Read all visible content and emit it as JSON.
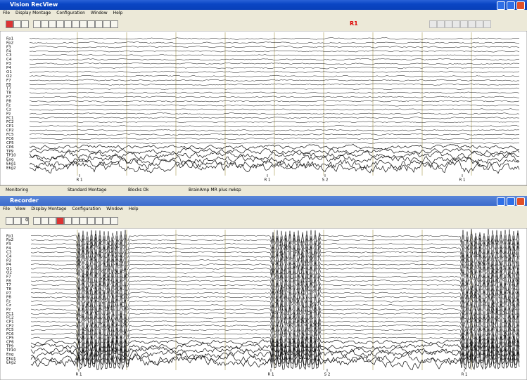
{
  "windows": [
    {
      "title": "Vision RecView",
      "menu": [
        "File",
        "Display Montage",
        "Configuration",
        "Window",
        "Help"
      ],
      "toolbar_label": "R1",
      "channels": [
        "Fp1",
        "Fp2",
        "F3",
        "F4",
        "C3",
        "C4",
        "P3",
        "P4",
        "O1",
        "O2",
        "F7",
        "F8",
        "T7",
        "T8",
        "P7",
        "P8",
        "Fz",
        "Cz",
        "Pz",
        "FC1",
        "FC2",
        "CP1",
        "CP2",
        "FC5",
        "FC6",
        "CP5",
        "CP6",
        "TP9",
        "TP10",
        "Eog",
        "Ekg1",
        "Ekg2"
      ],
      "markers": [
        "R 1",
        "R 1",
        "S 2",
        "R 1"
      ],
      "status": [
        "Monitoring",
        "Standard Montage",
        "Blocks Ok",
        "BrainAmp MR plus rwksp"
      ]
    },
    {
      "title": "Recorder",
      "menu": [
        "File",
        "View",
        "Display Montage",
        "Configuration",
        "Window",
        "Help"
      ],
      "toolbar_label": "0",
      "channels": [
        "Fp1",
        "Fp2",
        "F3",
        "F4",
        "C3",
        "C4",
        "P3",
        "P4",
        "O1",
        "O2",
        "F7",
        "F8",
        "T7",
        "T8",
        "P7",
        "P8",
        "Fz",
        "Cz",
        "Pz",
        "FC1",
        "FC2",
        "CP1",
        "CP2",
        "FC5",
        "FC6",
        "CP5",
        "CP6",
        "TP9",
        "TP10",
        "Eog",
        "Ekg1",
        "Ekg2"
      ],
      "markers": [
        "R 1",
        "R 1",
        "S 2",
        "R 1"
      ]
    }
  ]
}
